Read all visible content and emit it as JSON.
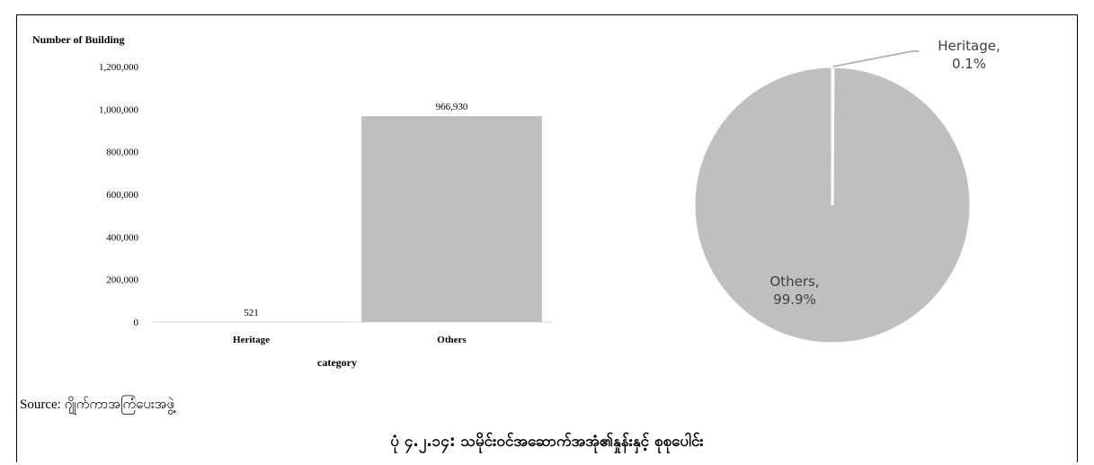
{
  "chart_data": [
    {
      "type": "bar",
      "title": "",
      "ylabel": "Number of Building",
      "xlabel": "category",
      "categories": [
        "Heritage",
        "Others"
      ],
      "values": [
        521,
        966930
      ],
      "value_labels": [
        "521",
        "966,930"
      ],
      "ylim": [
        0,
        1200000
      ],
      "yticks": [
        0,
        200000,
        400000,
        600000,
        800000,
        1000000,
        1200000
      ],
      "ytick_labels": [
        "0",
        "200,000",
        "400,000",
        "600,000",
        "800,000",
        "1,000,000",
        "1,200,000"
      ],
      "grid": false,
      "color": "#bfbfbf"
    },
    {
      "type": "pie",
      "slices": [
        {
          "label": "Heritage",
          "percent": 0.1,
          "display": [
            "Heritage,",
            "0.1%"
          ]
        },
        {
          "label": "Others",
          "percent": 99.9,
          "display": [
            "Others,",
            "99.9%"
          ]
        }
      ],
      "color": "#bfbfbf"
    }
  ],
  "source": "Source: ဂျိုက်ကာအကြံပေးအဖွဲ့",
  "caption": "ပုံ ၄.၂.၁၄: သမိုင်းဝင်အဆောက်အအုံ၏နှုန်းနှင့် စုစုပေါင်း"
}
